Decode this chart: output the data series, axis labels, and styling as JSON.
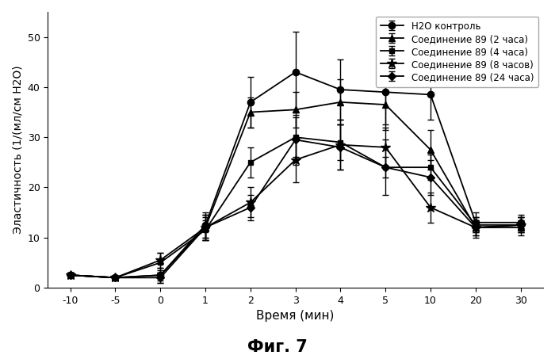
{
  "x_tick_labels": [
    "-10",
    "-5",
    "0",
    "1",
    "2",
    "3",
    "4",
    "5",
    "10",
    "20",
    "30"
  ],
  "x_positions": [
    0,
    1,
    2,
    3,
    4,
    5,
    6,
    7,
    8,
    9,
    10
  ],
  "series": [
    {
      "label": "H2O контроль",
      "marker": "o",
      "markersize": 6,
      "color": "#000000",
      "y": [
        2.5,
        2.0,
        2.5,
        12.5,
        37.0,
        43.0,
        39.5,
        39.0,
        38.5,
        13.0,
        13.0
      ],
      "yerr": [
        0.5,
        0.4,
        1.5,
        2.5,
        5.0,
        8.0,
        6.0,
        6.5,
        5.0,
        2.0,
        1.5
      ]
    },
    {
      "label": "Соединение 89 (2 часа)",
      "marker": "^",
      "markersize": 6,
      "color": "#000000",
      "y": [
        2.5,
        2.0,
        2.5,
        12.0,
        35.0,
        35.5,
        37.0,
        36.5,
        27.5,
        12.0,
        12.0
      ],
      "yerr": [
        0.5,
        0.4,
        1.0,
        2.5,
        3.0,
        3.5,
        4.5,
        5.0,
        4.0,
        2.0,
        1.5
      ]
    },
    {
      "label": "Соединение 89 (4 часа)",
      "marker": "s",
      "markersize": 5,
      "color": "#000000",
      "y": [
        2.5,
        2.0,
        5.0,
        11.5,
        25.0,
        30.0,
        29.0,
        24.0,
        24.0,
        12.5,
        12.5
      ],
      "yerr": [
        0.5,
        0.4,
        2.0,
        2.0,
        3.0,
        4.0,
        3.5,
        2.0,
        2.5,
        1.5,
        1.5
      ]
    },
    {
      "label": "Соединение 89 (8 часов)",
      "marker": "*",
      "markersize": 9,
      "color": "#000000",
      "y": [
        2.5,
        2.0,
        5.5,
        12.0,
        17.0,
        25.5,
        28.5,
        28.0,
        16.0,
        12.0,
        12.5
      ],
      "yerr": [
        0.5,
        0.4,
        1.5,
        2.5,
        3.0,
        4.5,
        5.0,
        4.0,
        3.0,
        1.5,
        1.5
      ]
    },
    {
      "label": "Соединение 89 (24 часа)",
      "marker": "D",
      "markersize": 5,
      "color": "#000000",
      "y": [
        2.5,
        2.0,
        2.0,
        12.0,
        16.0,
        29.5,
        28.0,
        24.0,
        22.0,
        12.0,
        12.5
      ],
      "yerr": [
        0.5,
        0.4,
        1.0,
        2.0,
        2.5,
        5.0,
        4.5,
        5.5,
        3.5,
        1.5,
        1.5
      ]
    }
  ],
  "xlabel": "Время (мин)",
  "ylabel": "Эластичность (1/(мл/см H2O)",
  "ylim": [
    0,
    55
  ],
  "yticks": [
    0,
    10,
    20,
    30,
    40,
    50
  ],
  "figure_title": "Фиг. 7",
  "background_color": "#ffffff",
  "linewidth": 1.3,
  "capsize": 3,
  "elinewidth": 1.0
}
